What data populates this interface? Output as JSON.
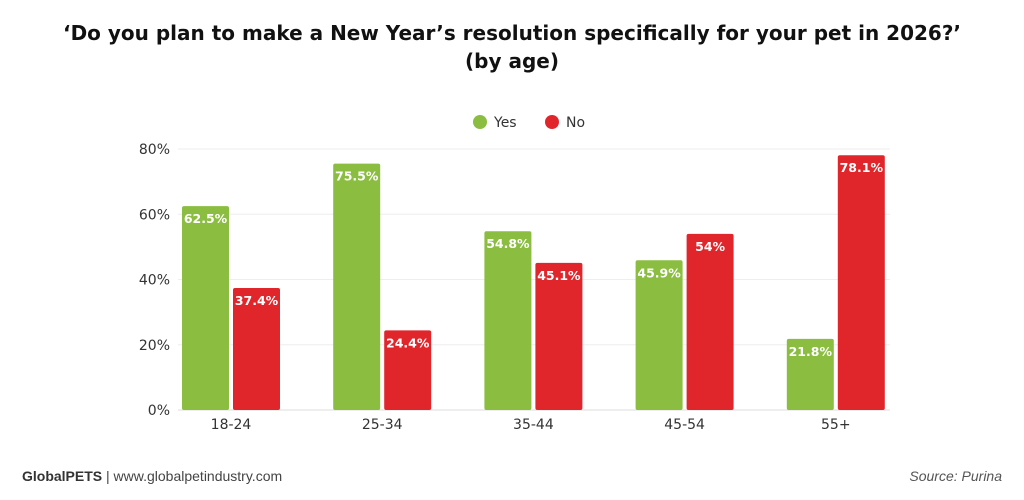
{
  "chart_data": {
    "type": "bar",
    "title": "‘Do you plan to make a New Year’s resolution specifically for your pet in 2026?’",
    "subtitle": "(by age)",
    "categories": [
      "18-24",
      "25-34",
      "35-44",
      "45-54",
      "55+"
    ],
    "series": [
      {
        "name": "Yes",
        "color": "#8abd40",
        "values": [
          62.5,
          75.5,
          54.8,
          45.9,
          21.8
        ],
        "labels": [
          "62.5%",
          "75.5%",
          "54.8%",
          "45.9%",
          "21.8%"
        ]
      },
      {
        "name": "No",
        "color": "#e0262b",
        "values": [
          37.4,
          24.4,
          45.1,
          54,
          78.1
        ],
        "labels": [
          "37.4%",
          "24.4%",
          "45.1%",
          "54%",
          "78.1%"
        ]
      }
    ],
    "ylim": [
      0,
      80
    ],
    "yticks": [
      "0%",
      "20%",
      "40%",
      "60%",
      "80%"
    ],
    "ytick_values": [
      0,
      20,
      40,
      60,
      80
    ],
    "grid": true,
    "legend": "top-center"
  },
  "footer": {
    "brand": "GlobalPETS",
    "separator": " | ",
    "website": "www.globalpetindustry.com",
    "source": "Source: Purina"
  }
}
